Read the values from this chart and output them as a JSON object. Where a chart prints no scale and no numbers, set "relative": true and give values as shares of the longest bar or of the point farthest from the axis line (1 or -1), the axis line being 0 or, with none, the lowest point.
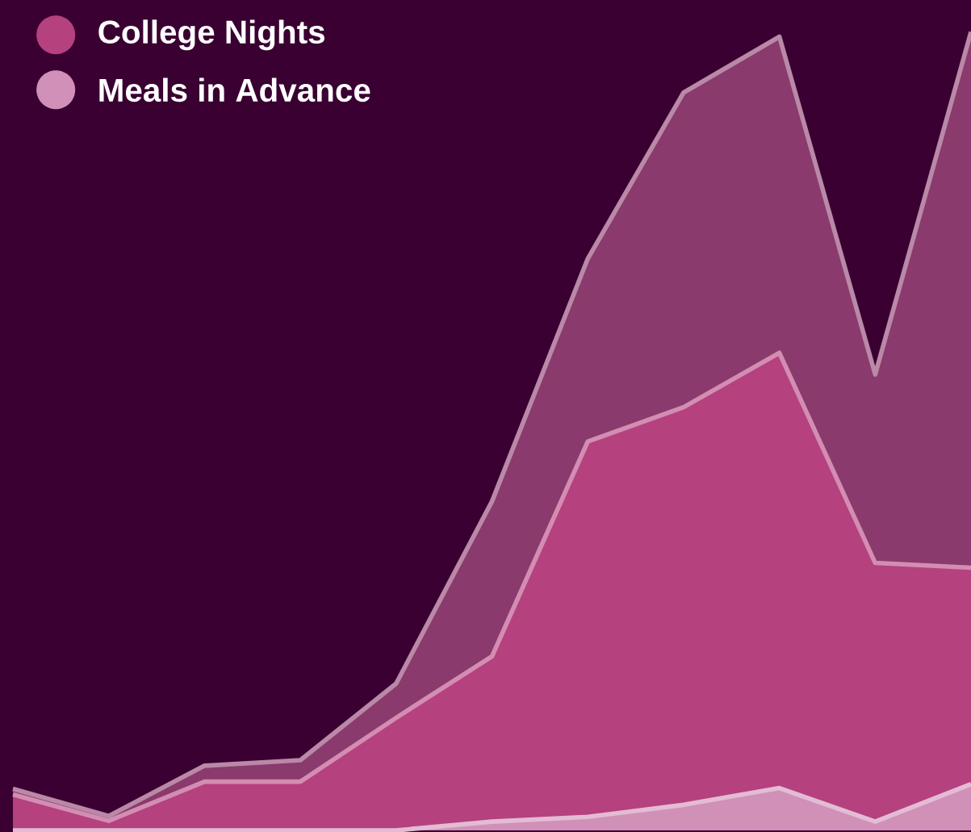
{
  "chart_data": {
    "type": "area",
    "relative": true,
    "legend": "top left",
    "categories": [
      null,
      null,
      null,
      null,
      null,
      null,
      null,
      null,
      null,
      null,
      null
    ],
    "series": [
      {
        "color": "#8a3a6c",
        "values": [
          0.052,
          0.018,
          0.081,
          0.088,
          0.184,
          0.412,
          0.716,
          0.924,
          0.994,
          0.571,
          1.0
        ]
      },
      {
        "name": "College Nights",
        "color": "#b5417f",
        "values": [
          0.045,
          0.012,
          0.061,
          0.061,
          0.141,
          0.218,
          0.487,
          0.53,
          0.598,
          0.335,
          0.329
        ]
      },
      {
        "name": "Meals in Advance",
        "color": "#d090b8",
        "values": [
          0,
          0,
          0,
          0,
          0,
          0.011,
          0.017,
          0.032,
          0.053,
          0.011,
          0.058
        ]
      }
    ]
  }
}
